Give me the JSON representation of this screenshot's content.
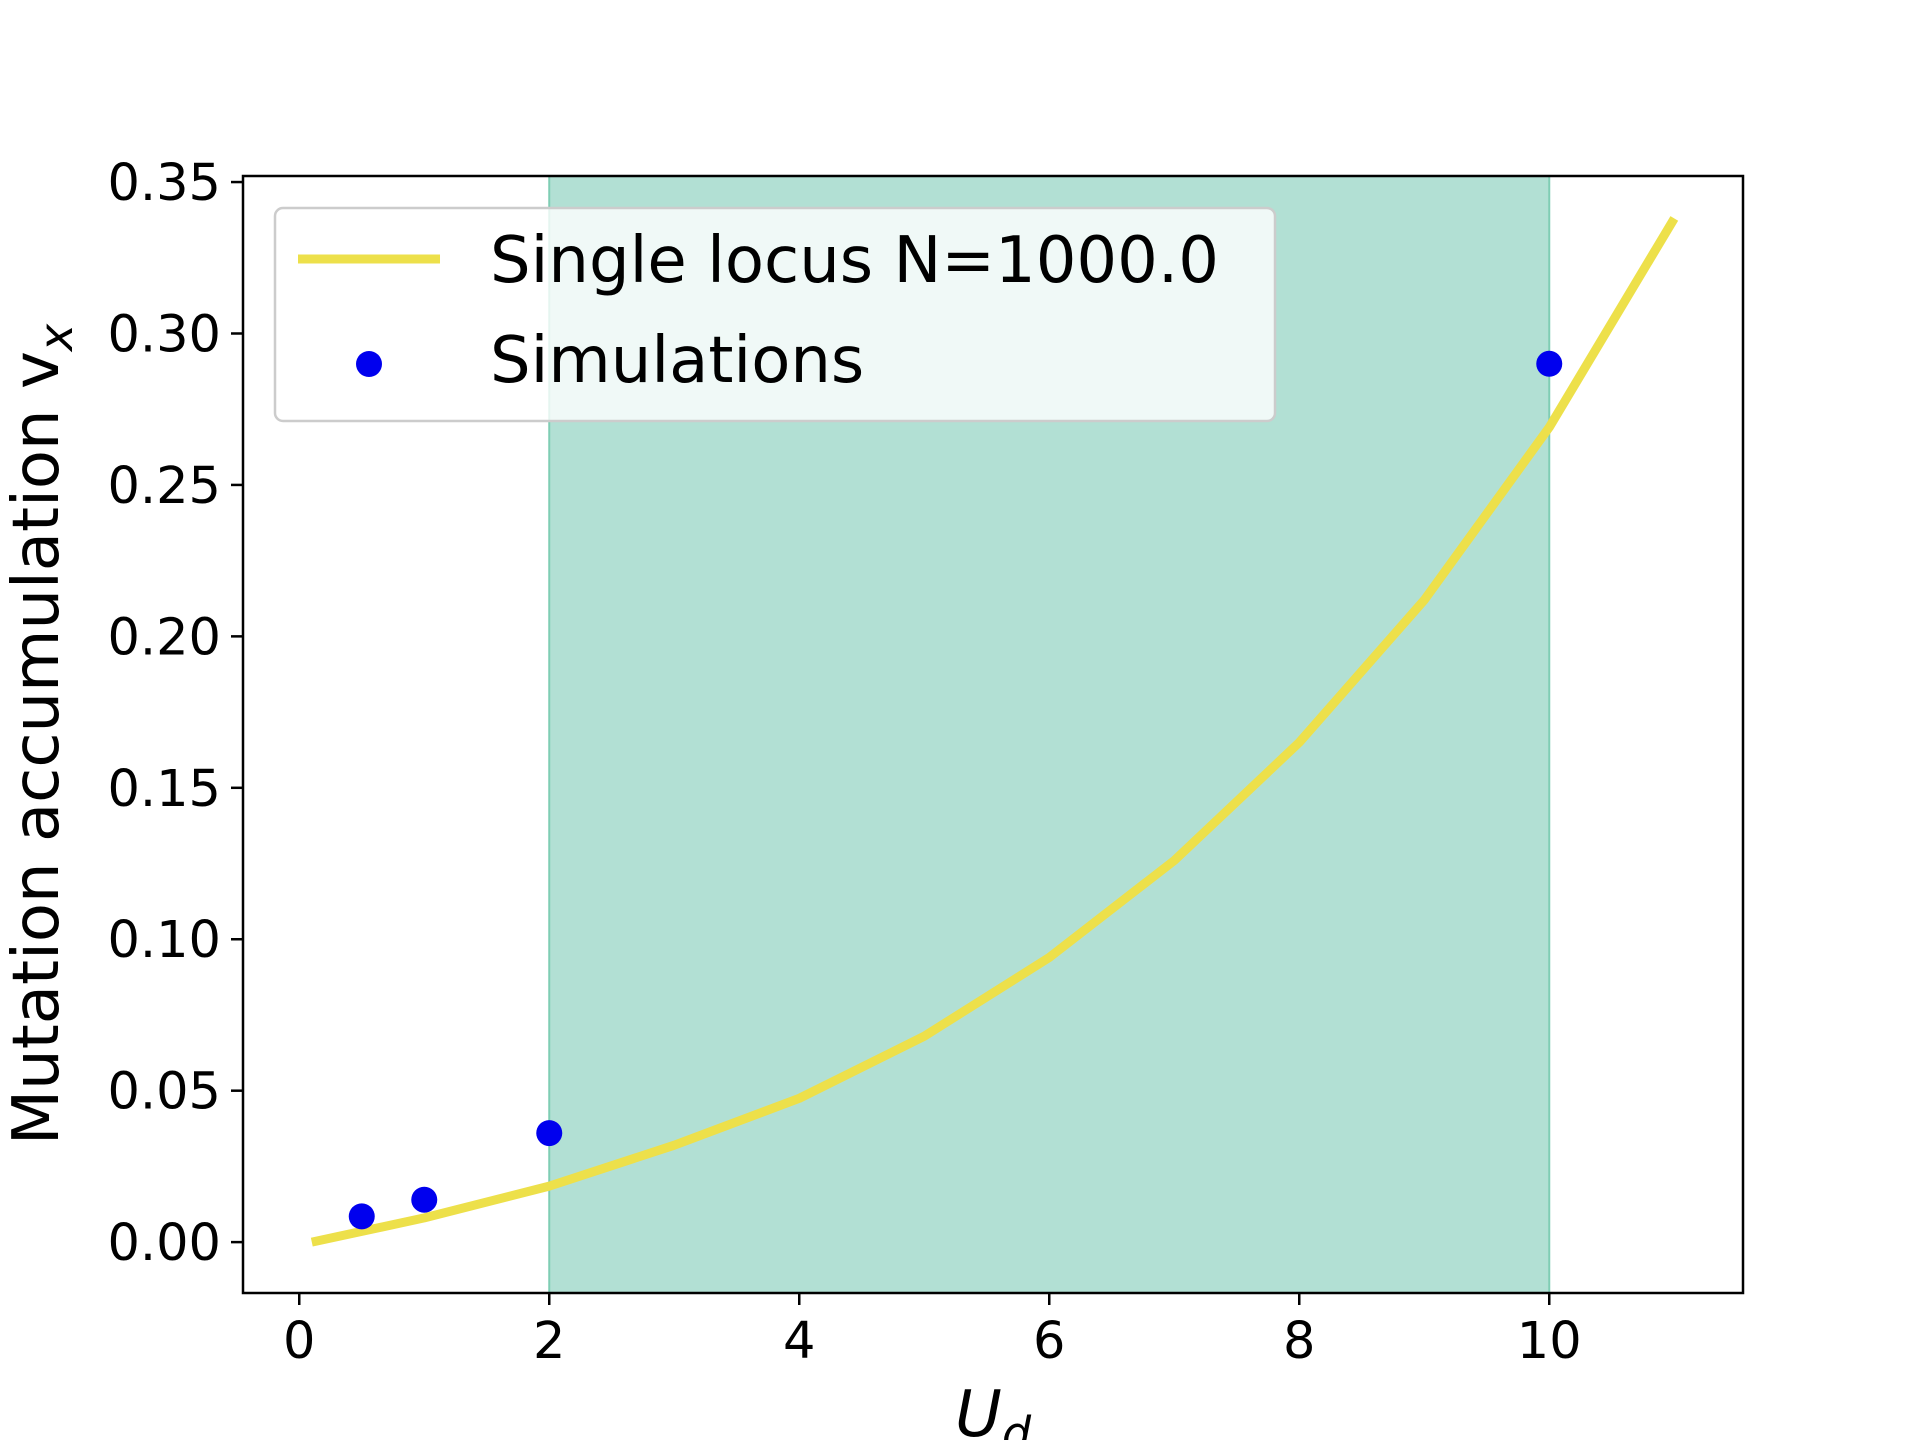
{
  "chart_data": {
    "type": "line",
    "title": "",
    "xlabel": "U",
    "xlabel_sub": "d",
    "ylabel": "Mutation accumulation v",
    "ylabel_sub": "x",
    "xlim": [
      -0.45,
      11.55
    ],
    "ylim": [
      -0.0168,
      0.352
    ],
    "xticks": [
      0,
      2,
      4,
      6,
      8,
      10
    ],
    "xtick_labels": [
      "0",
      "2",
      "4",
      "6",
      "8",
      "10"
    ],
    "yticks": [
      0.0,
      0.05,
      0.1,
      0.15,
      0.2,
      0.25,
      0.3,
      0.35
    ],
    "ytick_labels": [
      "0.00",
      "0.05",
      "0.10",
      "0.15",
      "0.20",
      "0.25",
      "0.30",
      "0.35"
    ],
    "grid": false,
    "legend_position": "upper-left",
    "shaded_region": {
      "x_start": 2,
      "x_end": 10,
      "color": "#b2e0d4",
      "edge_color": "#7fcdb4"
    },
    "series": [
      {
        "name": "Single locus N=1000.0",
        "kind": "line",
        "color": "#ede04a",
        "x": [
          0.1,
          1,
          2,
          3,
          4,
          5,
          6,
          7,
          8,
          9,
          10,
          11
        ],
        "y": [
          0.0,
          0.008,
          0.0185,
          0.032,
          0.0475,
          0.068,
          0.094,
          0.126,
          0.165,
          0.212,
          0.269,
          0.338
        ]
      },
      {
        "name": "Simulations",
        "kind": "scatter",
        "color": "#0000ee",
        "x": [
          0.5,
          1,
          2,
          10
        ],
        "y": [
          0.0085,
          0.014,
          0.036,
          0.29
        ]
      }
    ]
  }
}
